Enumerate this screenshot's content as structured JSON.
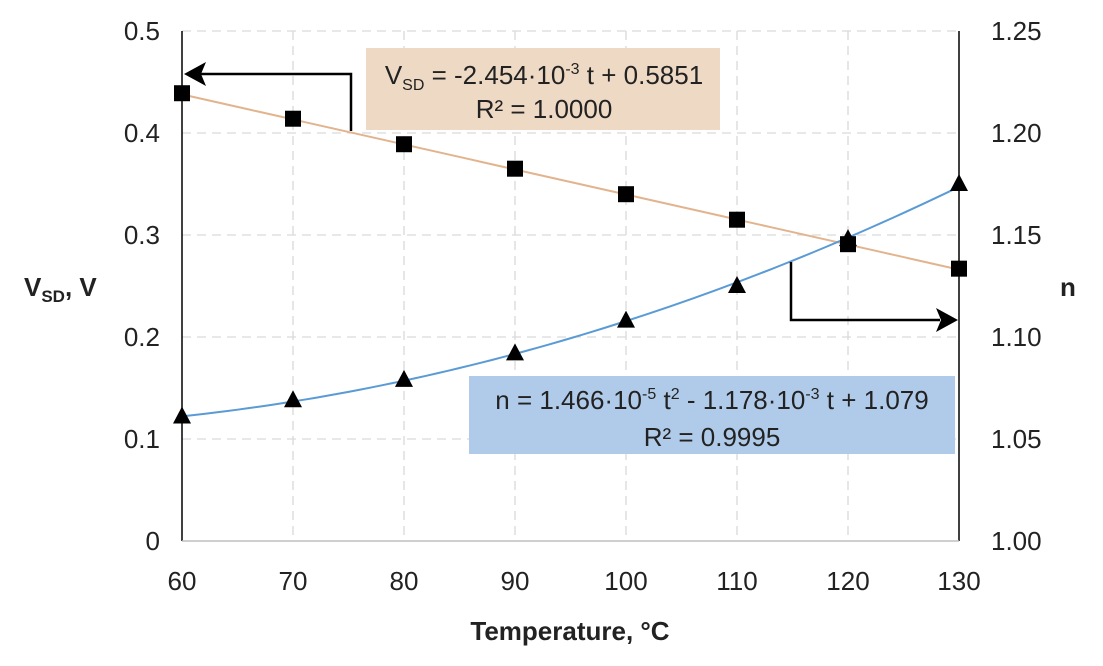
{
  "chart_data": {
    "type": "scatter",
    "title": "",
    "x": [
      60,
      70,
      80,
      90,
      100,
      110,
      120,
      130
    ],
    "xlabel": "Temperature, °C",
    "xlim": [
      60,
      130
    ],
    "xticks": [
      "60",
      "70",
      "80",
      "90",
      "100",
      "110",
      "120",
      "130"
    ],
    "ylabel_left": {
      "main": "V",
      "sub": "SD",
      "rest": ", V"
    },
    "ylim_left": [
      0,
      0.5
    ],
    "yticks_left": [
      "0",
      "0.1",
      "0.2",
      "0.3",
      "0.4",
      "0.5"
    ],
    "ylabel_right": "n",
    "ylim_right": [
      1.0,
      1.25
    ],
    "yticks_right": [
      "1.00",
      "1.05",
      "1.10",
      "1.15",
      "1.20",
      "1.25"
    ],
    "grid": true,
    "series": [
      {
        "name": "VSD",
        "axis": "left",
        "marker": "square",
        "values": [
          0.439,
          0.414,
          0.389,
          0.365,
          0.34,
          0.315,
          0.291,
          0.267
        ],
        "trend": {
          "type": "linear",
          "slope": -0.002454,
          "intercept": 0.5851,
          "color": "#e2b48e"
        }
      },
      {
        "name": "n",
        "axis": "right",
        "marker": "triangle",
        "values": [
          1.061,
          1.069,
          1.079,
          1.092,
          1.108,
          1.125,
          1.148,
          1.175
        ],
        "trend": {
          "type": "poly2",
          "a": 1.466e-05,
          "b": -0.001178,
          "c": 1.079,
          "color": "#5b9bd5"
        }
      }
    ],
    "annotations": {
      "vsd_eq": {
        "prefix": "V",
        "sub": "SD",
        "mid": " = -2.454·10",
        "sup": "-3",
        "tail": " t + 0.5851",
        "r2": "R² = 1.0000",
        "bg": "#eed9c4"
      },
      "n_eq": {
        "p1": "n = 1.466·10",
        "s1": "-5",
        "p2": " t",
        "s2": "2",
        "p3": " - 1.178·10",
        "s3": "-3",
        "p4": " t + 1.079",
        "r2": "R² = 0.9995",
        "bg": "#b0cbe9"
      }
    }
  }
}
